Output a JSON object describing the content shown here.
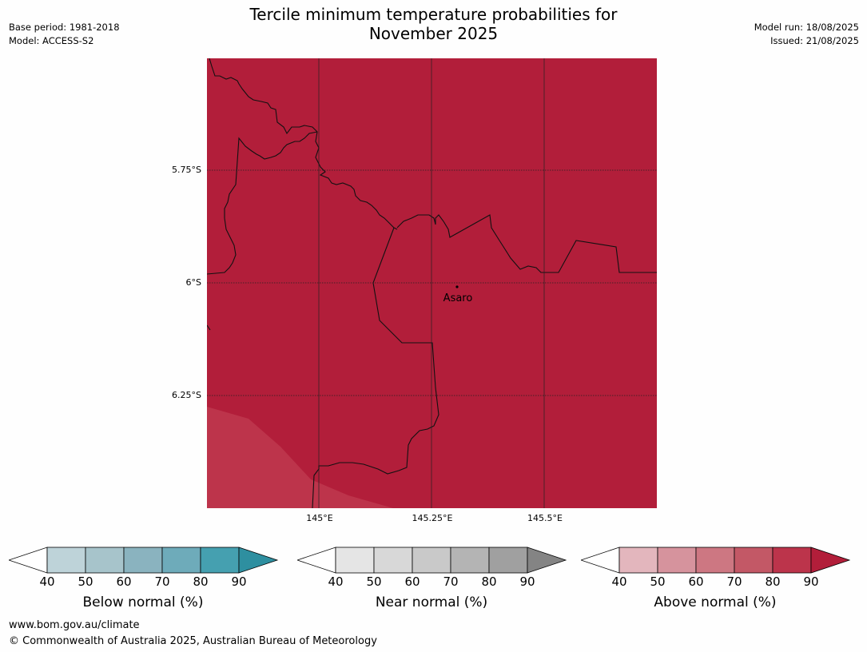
{
  "title_line1": "Tercile minimum temperature probabilities for",
  "title_line2": "November 2025",
  "meta_left": [
    "Base period: 1981-2018",
    "Model: ACCESS-S2"
  ],
  "meta_right": [
    "Model run: 18/08/2025",
    "Issued: 21/08/2025"
  ],
  "map": {
    "lat_labels": [
      "5.75°S",
      "6°S",
      "6.25°S"
    ],
    "lon_labels": [
      "145°E",
      "145.25°E",
      "145.5°E"
    ],
    "town": "Asaro",
    "fill_color": "#b21e3a",
    "secondary_fill_color": "#bd344b",
    "border_color": "#111111"
  },
  "legends": [
    {
      "label": "Below normal (%)",
      "ticks": [
        "40",
        "50",
        "60",
        "70",
        "80",
        "90"
      ],
      "colors": [
        "#bed3d9",
        "#a7c4cb",
        "#8ab3bf",
        "#6eabba",
        "#45a0b0",
        "#2e8fa0"
      ]
    },
    {
      "label": "Near normal (%)",
      "ticks": [
        "40",
        "50",
        "60",
        "70",
        "80",
        "90"
      ],
      "colors": [
        "#e5e5e5",
        "#d8d8d8",
        "#c9c9c9",
        "#b4b4b4",
        "#a0a0a0",
        "#848484"
      ]
    },
    {
      "label": "Above normal (%)",
      "ticks": [
        "40",
        "50",
        "60",
        "70",
        "80",
        "90"
      ],
      "colors": [
        "#e3b6bd",
        "#d6939d",
        "#cd7782",
        "#c35866",
        "#bc344b",
        "#b21e3a"
      ]
    }
  ],
  "footer": {
    "url": "www.bom.gov.au/climate",
    "copyright": "© Commonwealth of Australia 2025, Australian Bureau of Meteorology"
  }
}
